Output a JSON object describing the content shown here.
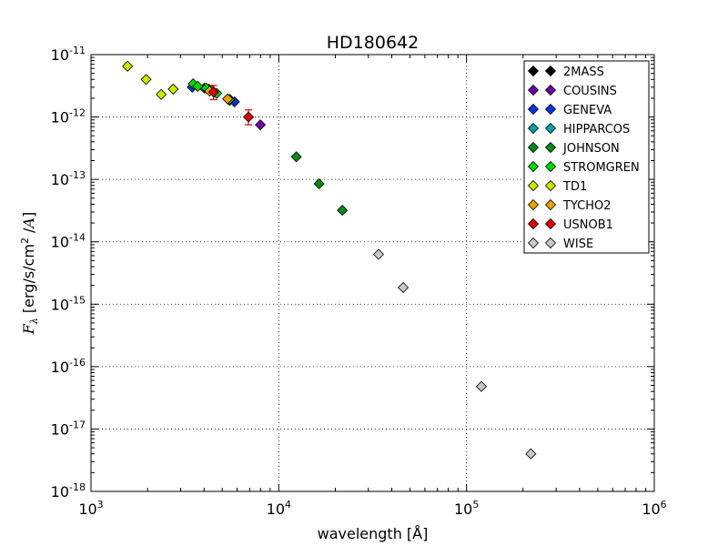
{
  "chart_data": {
    "type": "scatter",
    "title": "HD180642",
    "xlabel": "wavelength [Å]",
    "ylabel": "F_λ [erg/s/cm² /A]",
    "xscale": "log",
    "yscale": "log",
    "xlim": [
      1000,
      1000000
    ],
    "ylim": [
      1e-18,
      1e-11
    ],
    "grid": true,
    "legend_position": "top-right",
    "x_ticks": [
      {
        "base": "10",
        "exp": "3"
      },
      {
        "base": "10",
        "exp": "4"
      },
      {
        "base": "10",
        "exp": "5"
      },
      {
        "base": "10",
        "exp": "6"
      }
    ],
    "y_ticks": [
      {
        "base": "10",
        "exp": "-18"
      },
      {
        "base": "10",
        "exp": "-17"
      },
      {
        "base": "10",
        "exp": "-16"
      },
      {
        "base": "10",
        "exp": "-15"
      },
      {
        "base": "10",
        "exp": "-14"
      },
      {
        "base": "10",
        "exp": "-13"
      },
      {
        "base": "10",
        "exp": "-12"
      },
      {
        "base": "10",
        "exp": "-11"
      }
    ],
    "series": [
      {
        "name": "2MASS",
        "color": "#000000",
        "points": []
      },
      {
        "name": "COUSINS",
        "color": "#7000a8",
        "points": [
          {
            "x": 7980,
            "y": 7.5e-13
          }
        ]
      },
      {
        "name": "GENEVA",
        "color": "#0038e0",
        "points": [
          {
            "x": 3460,
            "y": 3e-12
          },
          {
            "x": 4020,
            "y": 2.9e-12
          },
          {
            "x": 4250,
            "y": 2.8e-12
          },
          {
            "x": 5480,
            "y": 1.85e-12
          },
          {
            "x": 5810,
            "y": 1.75e-12
          }
        ]
      },
      {
        "name": "HIPPARCOS",
        "color": "#00a0b0",
        "points": [
          {
            "x": 5350,
            "y": 1.95e-12
          }
        ]
      },
      {
        "name": "JOHNSON",
        "color": "#008c18",
        "points": [
          {
            "x": 4400,
            "y": 2.7e-12
          },
          {
            "x": 5500,
            "y": 1.9e-12
          },
          {
            "x": 12400,
            "y": 2.3e-13
          },
          {
            "x": 16400,
            "y": 8.5e-14
          },
          {
            "x": 21800,
            "y": 3.2e-14
          }
        ]
      },
      {
        "name": "STROMGREN",
        "color": "#00d800",
        "points": [
          {
            "x": 3500,
            "y": 3.4e-12
          },
          {
            "x": 3700,
            "y": 3.1e-12
          },
          {
            "x": 4110,
            "y": 2.9e-12
          },
          {
            "x": 4670,
            "y": 2.4e-12
          },
          {
            "x": 5470,
            "y": 1.9e-12
          }
        ]
      },
      {
        "name": "TD1",
        "color": "#cce800",
        "points": [
          {
            "x": 1565,
            "y": 6.5e-12
          },
          {
            "x": 1965,
            "y": 4e-12
          },
          {
            "x": 2365,
            "y": 2.3e-12
          },
          {
            "x": 2740,
            "y": 2.8e-12
          }
        ]
      },
      {
        "name": "TYCHO2",
        "color": "#f0a000",
        "points": [
          {
            "x": 4280,
            "y": 2.6e-12
          },
          {
            "x": 5340,
            "y": 1.95e-12
          }
        ]
      },
      {
        "name": "USNOB1",
        "color": "#e00000",
        "points": [
          {
            "x": 4500,
            "y": 2.5e-12,
            "err": [
              1.9e-12,
              3.2e-12
            ]
          },
          {
            "x": 6900,
            "y": 1e-12,
            "err": [
              7.5e-13,
              1.3e-12
            ]
          }
        ]
      },
      {
        "name": "WISE",
        "color": "#c8c8c8",
        "points": [
          {
            "x": 34000,
            "y": 6.3e-15
          },
          {
            "x": 46000,
            "y": 1.85e-15
          },
          {
            "x": 120000,
            "y": 4.8e-17
          },
          {
            "x": 220000,
            "y": 4e-18
          }
        ]
      }
    ]
  }
}
